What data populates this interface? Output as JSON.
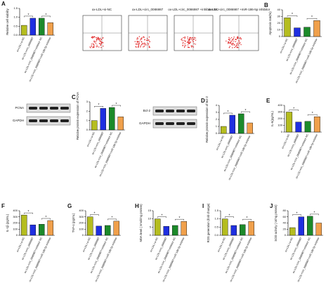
{
  "images": {
    "flow_labels": [
      "ox-LDL+si-NC",
      "ox-LDL+circ_0086987",
      "ox-LDL+circ_0086987 +inhibitor NC",
      "ox-LDL+circ_0086987 +miR-186-5p inhibitor"
    ],
    "blot_c": [
      "PCNA",
      "GAPDH"
    ],
    "blot_d": [
      "Bcl-2",
      "GAPDH"
    ]
  },
  "chart_data": [
    {
      "type": "bar",
      "panel": "A",
      "ylabel": "Relative cell viability",
      "categories": [
        "ox-LDL+si-NC",
        "ox-LDL+circ_0086987",
        "ox-LDL+circ_0086987+inhibitor NC",
        "ox-LDL+circ_0086987+miR-186-5p inhibitor"
      ],
      "values": [
        0.55,
        0.95,
        0.95,
        0.7
      ],
      "colors": [
        "#b5bd1f",
        "#1f2fe0",
        "#1c8a2a",
        "#f0a04b"
      ],
      "ylim": [
        0,
        1.5
      ],
      "yticks": [
        {
          "value": 0,
          "label": "0.0"
        },
        0.5,
        {
          "value": 1,
          "label": "1.0"
        },
        1.5
      ],
      "annotations": [
        "*",
        "*"
      ]
    },
    {
      "type": "bar",
      "panel": "B",
      "ylabel": "Apoptosis rate(%)",
      "categories": [
        "ox-LDL+si-NC",
        "ox-LDL+circ_0086987",
        "ox-LDL+circ_0086987+inhibitor NC",
        "ox-LDL+circ_0086987+miR-186-5p inhibitor"
      ],
      "values": [
        28,
        13,
        14,
        24
      ],
      "colors": [
        "#b5bd1f",
        "#1f2fe0",
        "#1c8a2a",
        "#f0a04b"
      ],
      "ylim": [
        0,
        40
      ],
      "yticks": [
        0,
        10,
        20,
        30,
        40
      ],
      "annotations": [
        "*",
        "*"
      ]
    },
    {
      "type": "bar",
      "panel": "C",
      "ylabel": "Relative protein expression of PCNA",
      "categories": [
        "ox-LDL+si-NC",
        "ox-LDL+circ_0086987",
        "ox-LDL+circ_0086987+inhibitor NC",
        "ox-LDL+circ_0086987+miR-186-5p inhibitor"
      ],
      "values": [
        1.0,
        2.3,
        2.4,
        1.4
      ],
      "colors": [
        "#b5bd1f",
        "#1f2fe0",
        "#1c8a2a",
        "#f0a04b"
      ],
      "ylim": [
        0,
        3
      ],
      "yticks": [
        0,
        1,
        2,
        3
      ],
      "annotations": [
        "*",
        "*"
      ]
    },
    {
      "type": "bar",
      "panel": "D",
      "ylabel": "Relative protein expression of Bcl-2",
      "categories": [
        "ox-LDL+si-NC",
        "ox-LDL+circ_0086987",
        "ox-LDL+circ_0086987+inhibitor NC",
        "ox-LDL+circ_0086987+miR-186-5p inhibitor"
      ],
      "values": [
        1.0,
        2.6,
        2.8,
        1.5
      ],
      "colors": [
        "#b5bd1f",
        "#1f2fe0",
        "#1c8a2a",
        "#f0a04b"
      ],
      "ylim": [
        0,
        4
      ],
      "yticks": [
        0,
        1,
        2,
        3,
        4
      ],
      "annotations": [
        "*",
        "*"
      ]
    },
    {
      "type": "bar",
      "panel": "E",
      "ylabel": "IL-6(pg/mL)",
      "categories": [
        "ox-LDL+si-NC",
        "ox-LDL+circ_0086987",
        "ox-LDL+circ_0086987+inhibitor NC",
        "ox-LDL+circ_0086987+miR-186-5p inhibitor"
      ],
      "values": [
        300,
        150,
        160,
        230
      ],
      "colors": [
        "#b5bd1f",
        "#1f2fe0",
        "#1c8a2a",
        "#f0a04b"
      ],
      "ylim": [
        0,
        400
      ],
      "yticks": [
        0,
        100,
        200,
        300,
        400
      ],
      "annotations": [
        "*",
        "*"
      ]
    },
    {
      "type": "bar",
      "panel": "F",
      "ylabel": "IL-1β (pg/mL)",
      "categories": [
        "ox-LDL+si-NC",
        "ox-LDL+circ_0086987",
        "ox-LDL+circ_0086987+inhibitor NC",
        "ox-LDL+circ_0086987+miR-186-5p inhibitor"
      ],
      "values": [
        330,
        170,
        180,
        240
      ],
      "colors": [
        "#b5bd1f",
        "#1f2fe0",
        "#1c8a2a",
        "#f0a04b"
      ],
      "ylim": [
        0,
        400
      ],
      "yticks": [
        0,
        100,
        200,
        300,
        400
      ],
      "annotations": [
        "*",
        "*"
      ]
    },
    {
      "type": "bar",
      "panel": "G",
      "ylabel": "TNF-α (pg/mL)",
      "categories": [
        "ox-LDL+si-NC",
        "ox-LDL+circ_0086987",
        "ox-LDL+circ_0086987+inhibitor NC",
        "ox-LDL+circ_0086987+miR-186-5p inhibitor"
      ],
      "values": [
        300,
        150,
        160,
        230
      ],
      "colors": [
        "#b5bd1f",
        "#1f2fe0",
        "#1c8a2a",
        "#f0a04b"
      ],
      "ylim": [
        0,
        400
      ],
      "yticks": [
        0,
        100,
        200,
        300,
        400
      ],
      "annotations": [
        "*",
        "*"
      ]
    },
    {
      "type": "bar",
      "panel": "H",
      "ylabel": "MDA level ( nmol/mg protein)",
      "categories": [
        "ox-LDL+si-NC",
        "ox-LDL+circ_0086987",
        "ox-LDL+circ_0086987+inhibitor NC",
        "ox-LDL+circ_0086987+miR-186-5p inhibitor"
      ],
      "values": [
        10,
        5.5,
        6,
        8.5
      ],
      "colors": [
        "#b5bd1f",
        "#1f2fe0",
        "#1c8a2a",
        "#f0a04b"
      ],
      "ylim": [
        0,
        15
      ],
      "yticks": [
        0,
        5,
        10,
        15
      ],
      "annotations": [
        "*",
        "*"
      ]
    },
    {
      "type": "bar",
      "panel": "I",
      "ylabel": "ROS generation (fold change)",
      "categories": [
        "ox-LDL+si-NC",
        "ox-LDL+circ_0086987",
        "ox-LDL+circ_0086987+inhibitor NC",
        "ox-LDL+circ_0086987+miR-186-5p inhibitor"
      ],
      "values": [
        1.0,
        0.6,
        0.65,
        0.85
      ],
      "colors": [
        "#b5bd1f",
        "#1f2fe0",
        "#1c8a2a",
        "#f0a04b"
      ],
      "ylim": [
        0,
        1.5
      ],
      "yticks": [
        {
          "value": 0,
          "label": "0.0"
        },
        0.5,
        {
          "value": 1,
          "label": "1.0"
        },
        1.5
      ],
      "annotations": [
        "*",
        "*"
      ]
    },
    {
      "type": "bar",
      "panel": "J",
      "ylabel": "SOD activity ( U/mg protein)",
      "categories": [
        "ox-LDL+si-NC",
        "ox-LDL+circ_0086987",
        "ox-LDL+circ_0086987+inhibitor NC",
        "ox-LDL+circ_0086987+miR-186-5p inhibitor"
      ],
      "values": [
        25,
        60,
        62,
        40
      ],
      "colors": [
        "#b5bd1f",
        "#1f2fe0",
        "#1c8a2a",
        "#f0a04b"
      ],
      "ylim": [
        0,
        80
      ],
      "yticks": [
        0,
        20,
        40,
        60,
        80
      ],
      "annotations": [
        "*",
        "*"
      ]
    }
  ]
}
